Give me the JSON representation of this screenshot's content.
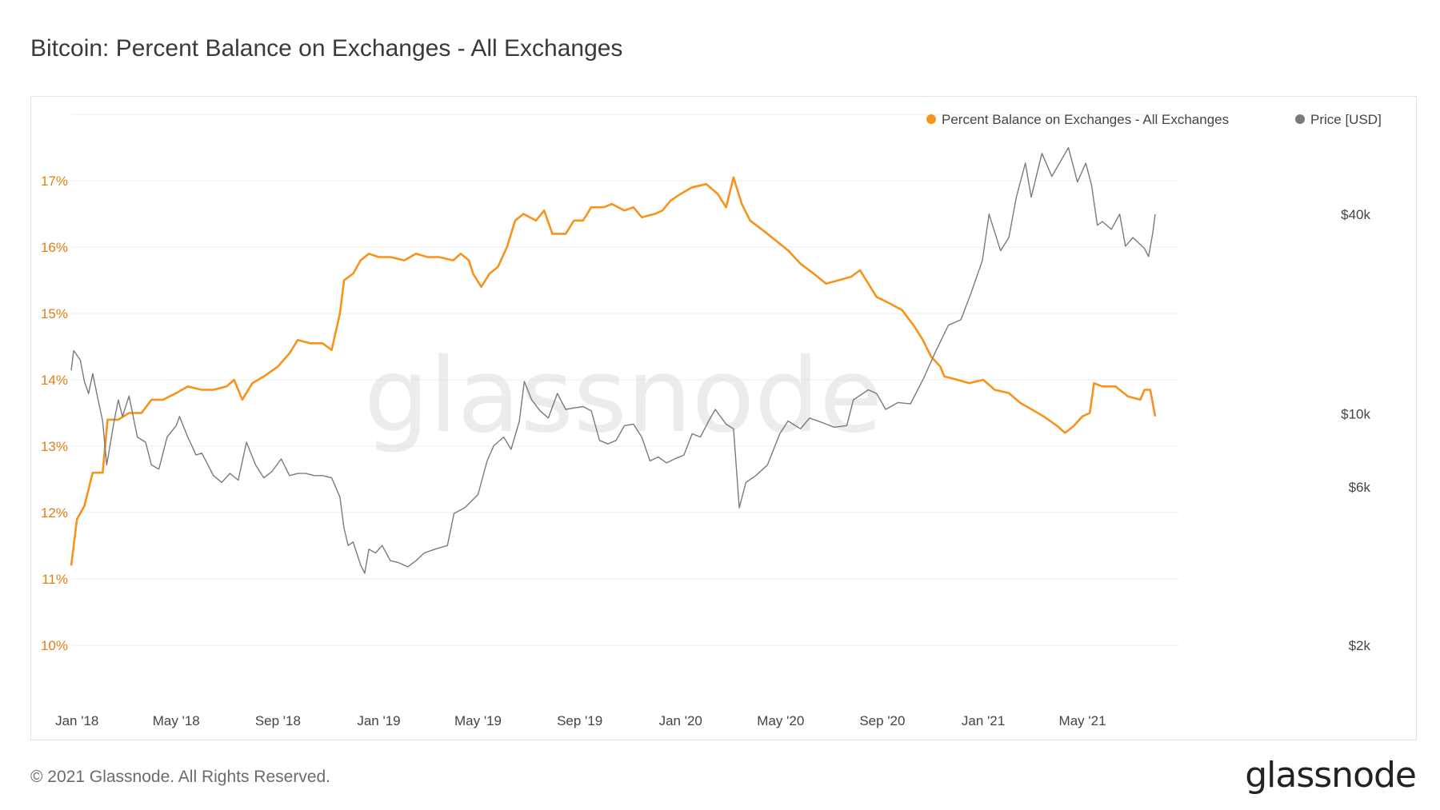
{
  "title": "Bitcoin: Percent Balance on Exchanges - All Exchanges",
  "footer": "© 2021 Glassnode. All Rights Reserved.",
  "logo_text": "glassnode",
  "watermark_text": "glassnode",
  "colors": {
    "balance": "#f7931a",
    "price": "#7a7a7a",
    "grid": "#ececec",
    "axis_left": "#e07f12"
  },
  "chart_data": {
    "type": "line",
    "title": "Bitcoin: Percent Balance on Exchanges - All Exchanges",
    "legend_position": "top-right",
    "legend": [
      "Percent Balance on Exchanges - All Exchanges",
      "Price [USD]"
    ],
    "x_ticks": [
      "Jan '18",
      "May '18",
      "Sep '18",
      "Jan '19",
      "May '19",
      "Sep '19",
      "Jan '20",
      "May '20",
      "Sep '20",
      "Jan '21",
      "May '21"
    ],
    "x_range": [
      "2017-12-25",
      "2021-07-28"
    ],
    "y_left": {
      "label": "",
      "range": [
        10,
        18
      ],
      "ticks": [
        "10%",
        "11%",
        "12%",
        "13%",
        "14%",
        "15%",
        "16%",
        "17%"
      ],
      "tick_values": [
        10,
        11,
        12,
        13,
        14,
        15,
        16,
        17
      ]
    },
    "y_right": {
      "label": "",
      "scale": "log",
      "range": [
        2000,
        80000
      ],
      "ticks": [
        "$2k",
        "$6k",
        "$10k",
        "$40k"
      ],
      "tick_values": [
        2000,
        6000,
        10000,
        40000
      ]
    },
    "grid": true,
    "series": [
      {
        "name": "Percent Balance on Exchanges - All Exchanges",
        "axis": "left",
        "points": [
          [
            "2017-12-25",
            11.2
          ],
          [
            "2018-01-01",
            11.9
          ],
          [
            "2018-01-10",
            12.1
          ],
          [
            "2018-01-20",
            12.6
          ],
          [
            "2018-02-01",
            12.6
          ],
          [
            "2018-02-07",
            13.4
          ],
          [
            "2018-02-20",
            13.4
          ],
          [
            "2018-03-05",
            13.5
          ],
          [
            "2018-03-20",
            13.5
          ],
          [
            "2018-04-01",
            13.7
          ],
          [
            "2018-04-15",
            13.7
          ],
          [
            "2018-05-01",
            13.8
          ],
          [
            "2018-05-15",
            13.9
          ],
          [
            "2018-06-01",
            13.85
          ],
          [
            "2018-06-15",
            13.85
          ],
          [
            "2018-07-01",
            13.9
          ],
          [
            "2018-07-10",
            14.0
          ],
          [
            "2018-07-20",
            13.7
          ],
          [
            "2018-08-01",
            13.95
          ],
          [
            "2018-08-15",
            14.05
          ],
          [
            "2018-09-01",
            14.2
          ],
          [
            "2018-09-15",
            14.4
          ],
          [
            "2018-09-25",
            14.6
          ],
          [
            "2018-10-10",
            14.55
          ],
          [
            "2018-10-25",
            14.55
          ],
          [
            "2018-11-05",
            14.45
          ],
          [
            "2018-11-15",
            15.0
          ],
          [
            "2018-11-20",
            15.5
          ],
          [
            "2018-12-01",
            15.6
          ],
          [
            "2018-12-10",
            15.8
          ],
          [
            "2018-12-20",
            15.9
          ],
          [
            "2019-01-01",
            15.85
          ],
          [
            "2019-01-15",
            15.85
          ],
          [
            "2019-02-01",
            15.8
          ],
          [
            "2019-02-15",
            15.9
          ],
          [
            "2019-03-01",
            15.85
          ],
          [
            "2019-03-15",
            15.85
          ],
          [
            "2019-04-01",
            15.8
          ],
          [
            "2019-04-10",
            15.9
          ],
          [
            "2019-04-20",
            15.8
          ],
          [
            "2019-04-25",
            15.6
          ],
          [
            "2019-05-05",
            15.4
          ],
          [
            "2019-05-15",
            15.6
          ],
          [
            "2019-05-25",
            15.7
          ],
          [
            "2019-06-05",
            16.0
          ],
          [
            "2019-06-15",
            16.4
          ],
          [
            "2019-06-25",
            16.5
          ],
          [
            "2019-07-10",
            16.4
          ],
          [
            "2019-07-20",
            16.55
          ],
          [
            "2019-07-30",
            16.2
          ],
          [
            "2019-08-15",
            16.2
          ],
          [
            "2019-08-25",
            16.4
          ],
          [
            "2019-09-05",
            16.4
          ],
          [
            "2019-09-15",
            16.6
          ],
          [
            "2019-09-30",
            16.6
          ],
          [
            "2019-10-10",
            16.65
          ],
          [
            "2019-10-25",
            16.55
          ],
          [
            "2019-11-05",
            16.6
          ],
          [
            "2019-11-15",
            16.45
          ],
          [
            "2019-12-01",
            16.5
          ],
          [
            "2019-12-10",
            16.55
          ],
          [
            "2019-12-20",
            16.7
          ],
          [
            "2020-01-01",
            16.8
          ],
          [
            "2020-01-15",
            16.9
          ],
          [
            "2020-02-01",
            16.95
          ],
          [
            "2020-02-15",
            16.8
          ],
          [
            "2020-02-25",
            16.6
          ],
          [
            "2020-03-05",
            17.05
          ],
          [
            "2020-03-15",
            16.65
          ],
          [
            "2020-03-25",
            16.4
          ],
          [
            "2020-04-10",
            16.25
          ],
          [
            "2020-04-25",
            16.1
          ],
          [
            "2020-05-10",
            15.95
          ],
          [
            "2020-05-25",
            15.75
          ],
          [
            "2020-06-10",
            15.6
          ],
          [
            "2020-06-25",
            15.45
          ],
          [
            "2020-07-10",
            15.5
          ],
          [
            "2020-07-25",
            15.55
          ],
          [
            "2020-08-05",
            15.65
          ],
          [
            "2020-08-15",
            15.45
          ],
          [
            "2020-08-25",
            15.25
          ],
          [
            "2020-09-10",
            15.15
          ],
          [
            "2020-09-25",
            15.05
          ],
          [
            "2020-10-10",
            14.8
          ],
          [
            "2020-10-20",
            14.6
          ],
          [
            "2020-10-30",
            14.35
          ],
          [
            "2020-11-10",
            14.2
          ],
          [
            "2020-11-15",
            14.05
          ],
          [
            "2020-12-01",
            14.0
          ],
          [
            "2020-12-15",
            13.95
          ],
          [
            "2021-01-01",
            14.0
          ],
          [
            "2021-01-15",
            13.85
          ],
          [
            "2021-02-01",
            13.8
          ],
          [
            "2021-02-15",
            13.65
          ],
          [
            "2021-03-01",
            13.55
          ],
          [
            "2021-03-15",
            13.45
          ],
          [
            "2021-04-01",
            13.3
          ],
          [
            "2021-04-10",
            13.2
          ],
          [
            "2021-04-20",
            13.3
          ],
          [
            "2021-05-01",
            13.45
          ],
          [
            "2021-05-10",
            13.5
          ],
          [
            "2021-05-15",
            13.95
          ],
          [
            "2021-05-25",
            13.9
          ],
          [
            "2021-06-10",
            13.9
          ],
          [
            "2021-06-25",
            13.75
          ],
          [
            "2021-07-10",
            13.7
          ],
          [
            "2021-07-15",
            13.85
          ],
          [
            "2021-07-22",
            13.85
          ],
          [
            "2021-07-28",
            13.45
          ]
        ]
      },
      {
        "name": "Price [USD]",
        "axis": "right",
        "points": [
          [
            "2017-12-25",
            13500
          ],
          [
            "2017-12-28",
            15500
          ],
          [
            "2018-01-05",
            14500
          ],
          [
            "2018-01-10",
            12500
          ],
          [
            "2018-01-15",
            11500
          ],
          [
            "2018-01-20",
            13200
          ],
          [
            "2018-01-25",
            11500
          ],
          [
            "2018-02-01",
            9500
          ],
          [
            "2018-02-06",
            7000
          ],
          [
            "2018-02-15",
            9500
          ],
          [
            "2018-02-20",
            11000
          ],
          [
            "2018-02-25",
            9800
          ],
          [
            "2018-03-05",
            11300
          ],
          [
            "2018-03-15",
            8500
          ],
          [
            "2018-03-25",
            8200
          ],
          [
            "2018-04-01",
            7000
          ],
          [
            "2018-04-10",
            6800
          ],
          [
            "2018-04-20",
            8500
          ],
          [
            "2018-05-01",
            9200
          ],
          [
            "2018-05-05",
            9800
          ],
          [
            "2018-05-15",
            8500
          ],
          [
            "2018-05-25",
            7500
          ],
          [
            "2018-06-01",
            7600
          ],
          [
            "2018-06-15",
            6500
          ],
          [
            "2018-06-25",
            6200
          ],
          [
            "2018-07-05",
            6600
          ],
          [
            "2018-07-15",
            6300
          ],
          [
            "2018-07-25",
            8200
          ],
          [
            "2018-08-05",
            7000
          ],
          [
            "2018-08-15",
            6400
          ],
          [
            "2018-08-25",
            6700
          ],
          [
            "2018-09-05",
            7300
          ],
          [
            "2018-09-15",
            6500
          ],
          [
            "2018-09-25",
            6600
          ],
          [
            "2018-10-05",
            6600
          ],
          [
            "2018-10-15",
            6500
          ],
          [
            "2018-10-25",
            6500
          ],
          [
            "2018-11-05",
            6400
          ],
          [
            "2018-11-15",
            5600
          ],
          [
            "2018-11-20",
            4500
          ],
          [
            "2018-11-25",
            4000
          ],
          [
            "2018-12-01",
            4100
          ],
          [
            "2018-12-10",
            3500
          ],
          [
            "2018-12-15",
            3300
          ],
          [
            "2018-12-20",
            3900
          ],
          [
            "2018-12-28",
            3800
          ],
          [
            "2019-01-05",
            4000
          ],
          [
            "2019-01-15",
            3600
          ],
          [
            "2019-01-25",
            3550
          ],
          [
            "2019-02-05",
            3450
          ],
          [
            "2019-02-15",
            3600
          ],
          [
            "2019-02-25",
            3800
          ],
          [
            "2019-03-10",
            3900
          ],
          [
            "2019-03-25",
            4000
          ],
          [
            "2019-04-02",
            5000
          ],
          [
            "2019-04-15",
            5200
          ],
          [
            "2019-05-01",
            5700
          ],
          [
            "2019-05-12",
            7200
          ],
          [
            "2019-05-20",
            8000
          ],
          [
            "2019-06-01",
            8500
          ],
          [
            "2019-06-10",
            7800
          ],
          [
            "2019-06-20",
            9500
          ],
          [
            "2019-06-26",
            12500
          ],
          [
            "2019-07-05",
            11000
          ],
          [
            "2019-07-15",
            10200
          ],
          [
            "2019-07-25",
            9700
          ],
          [
            "2019-08-05",
            11500
          ],
          [
            "2019-08-15",
            10300
          ],
          [
            "2019-08-25",
            10400
          ],
          [
            "2019-09-05",
            10500
          ],
          [
            "2019-09-15",
            10200
          ],
          [
            "2019-09-25",
            8300
          ],
          [
            "2019-10-05",
            8100
          ],
          [
            "2019-10-15",
            8300
          ],
          [
            "2019-10-25",
            9200
          ],
          [
            "2019-11-05",
            9300
          ],
          [
            "2019-11-15",
            8500
          ],
          [
            "2019-11-25",
            7200
          ],
          [
            "2019-12-05",
            7400
          ],
          [
            "2019-12-15",
            7100
          ],
          [
            "2019-12-25",
            7300
          ],
          [
            "2020-01-05",
            7500
          ],
          [
            "2020-01-15",
            8700
          ],
          [
            "2020-01-25",
            8500
          ],
          [
            "2020-02-05",
            9600
          ],
          [
            "2020-02-12",
            10300
          ],
          [
            "2020-02-25",
            9300
          ],
          [
            "2020-03-05",
            9000
          ],
          [
            "2020-03-12",
            5200
          ],
          [
            "2020-03-20",
            6200
          ],
          [
            "2020-04-01",
            6500
          ],
          [
            "2020-04-15",
            7000
          ],
          [
            "2020-04-30",
            8700
          ],
          [
            "2020-05-10",
            9500
          ],
          [
            "2020-05-25",
            9000
          ],
          [
            "2020-06-05",
            9700
          ],
          [
            "2020-06-20",
            9400
          ],
          [
            "2020-07-05",
            9100
          ],
          [
            "2020-07-20",
            9200
          ],
          [
            "2020-07-28",
            11000
          ],
          [
            "2020-08-15",
            11800
          ],
          [
            "2020-08-25",
            11500
          ],
          [
            "2020-09-05",
            10300
          ],
          [
            "2020-09-20",
            10800
          ],
          [
            "2020-10-05",
            10700
          ],
          [
            "2020-10-21",
            12800
          ],
          [
            "2020-11-05",
            15500
          ],
          [
            "2020-11-20",
            18500
          ],
          [
            "2020-12-05",
            19200
          ],
          [
            "2020-12-17",
            23000
          ],
          [
            "2020-12-31",
            29000
          ],
          [
            "2021-01-08",
            40000
          ],
          [
            "2021-01-22",
            31000
          ],
          [
            "2021-02-01",
            34000
          ],
          [
            "2021-02-10",
            45000
          ],
          [
            "2021-02-21",
            57000
          ],
          [
            "2021-02-28",
            45000
          ],
          [
            "2021-03-13",
            61000
          ],
          [
            "2021-03-25",
            52000
          ],
          [
            "2021-04-05",
            58000
          ],
          [
            "2021-04-14",
            63500
          ],
          [
            "2021-04-25",
            50000
          ],
          [
            "2021-05-05",
            57000
          ],
          [
            "2021-05-12",
            49000
          ],
          [
            "2021-05-19",
            37000
          ],
          [
            "2021-05-25",
            38000
          ],
          [
            "2021-06-05",
            36000
          ],
          [
            "2021-06-15",
            40000
          ],
          [
            "2021-06-22",
            32000
          ],
          [
            "2021-07-01",
            34000
          ],
          [
            "2021-07-15",
            31500
          ],
          [
            "2021-07-20",
            29800
          ],
          [
            "2021-07-25",
            35000
          ],
          [
            "2021-07-28",
            40000
          ]
        ]
      }
    ]
  }
}
